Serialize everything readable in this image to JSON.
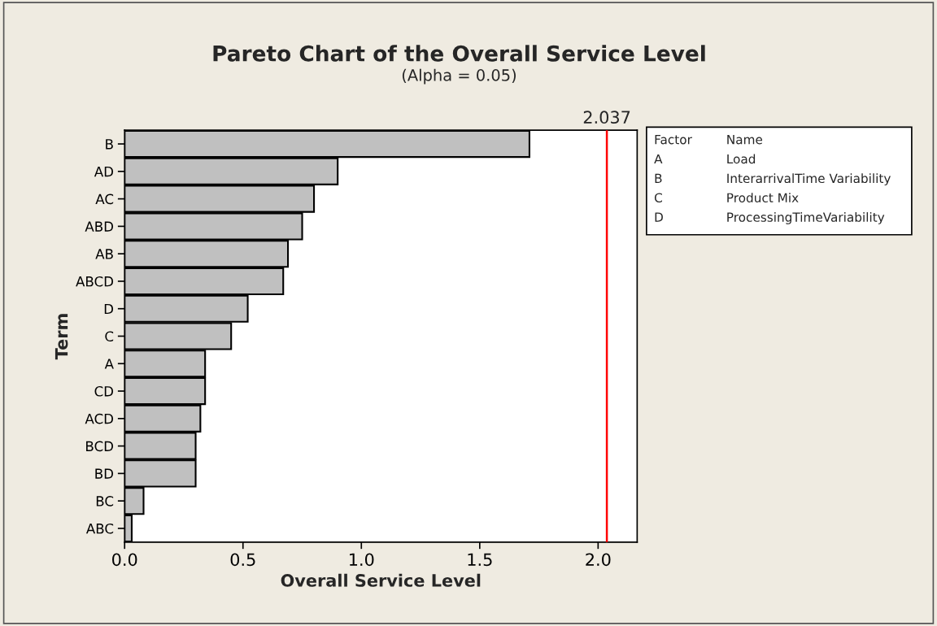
{
  "chart_data": {
    "type": "bar",
    "orientation": "horizontal",
    "title": "Pareto Chart of the Overall Service Level",
    "subtitle": "(Alpha = 0.05)",
    "xlabel": "Overall Service Level",
    "ylabel": "Term",
    "categories": [
      "B",
      "AD",
      "AC",
      "ABD",
      "AB",
      "ABCD",
      "D",
      "C",
      "A",
      "CD",
      "ACD",
      "BCD",
      "BD",
      "BC",
      "ABC"
    ],
    "values": [
      1.71,
      0.9,
      0.8,
      0.75,
      0.69,
      0.67,
      0.52,
      0.45,
      0.34,
      0.34,
      0.32,
      0.3,
      0.3,
      0.08,
      0.03
    ],
    "color": "#c0c0c0",
    "xlim": [
      0.0,
      2.165
    ],
    "xticks": [
      {
        "value": 0,
        "label": "0.0"
      },
      {
        "value": 0.5,
        "label": "0.5"
      },
      {
        "value": 1,
        "label": "1.0"
      },
      {
        "value": 1.5,
        "label": "1.5"
      },
      {
        "value": 2,
        "label": "2.0"
      }
    ],
    "ref_lines": [
      {
        "axis": "x",
        "value": 2.037,
        "label": "2.037",
        "color": "#ff0000"
      }
    ],
    "annotations": [
      "Factor",
      "Name",
      "A",
      "Load",
      "B",
      "InterarrivalTime Variability",
      "C",
      "Product Mix",
      "D",
      "ProcessingTimeVariability"
    ],
    "grid": false,
    "legend": false
  }
}
